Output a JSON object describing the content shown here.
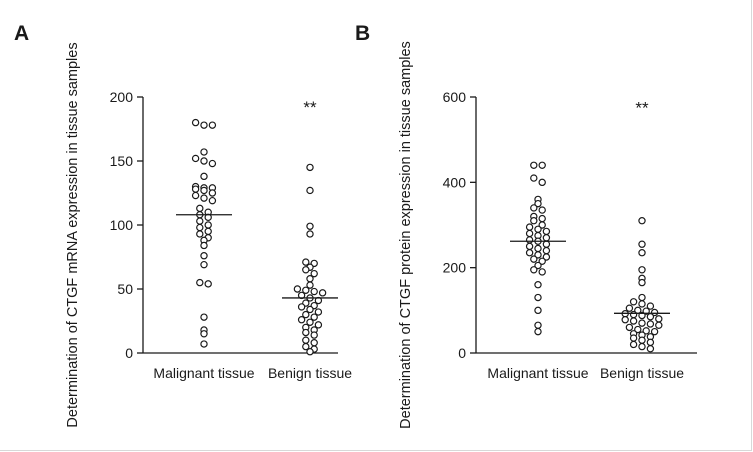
{
  "panels": [
    {
      "label": "A"
    },
    {
      "label": "B"
    }
  ],
  "chart_data": [
    {
      "type": "scatter",
      "subtype": "dot-plot",
      "title": "",
      "ylabel": "Determination of CTGF mRNA expression in tissue samples",
      "xlabel": "",
      "categories": [
        "Malignant tissue",
        "Benign tissue"
      ],
      "ylim": [
        0,
        200
      ],
      "yticks": [
        0,
        50,
        100,
        150,
        200
      ],
      "grid": false,
      "legend": "none",
      "annotations": [
        {
          "text": "**",
          "category": "Benign tissue",
          "y": 197
        }
      ],
      "series": [
        {
          "values": [
            180,
            178,
            178,
            157,
            152,
            150,
            148,
            138,
            130,
            129,
            129,
            128,
            127,
            125,
            123,
            121,
            119,
            113,
            110,
            108,
            106,
            103,
            100,
            98,
            95,
            93,
            90,
            88,
            84,
            76,
            69,
            55,
            54,
            28,
            18,
            15,
            7
          ],
          "mean": 108
        },
        {
          "values": [
            145,
            127,
            99,
            93,
            71,
            70,
            67,
            65,
            62,
            58,
            53,
            50,
            49,
            48,
            47,
            45,
            43,
            41,
            39,
            37,
            36,
            34,
            32,
            30,
            28,
            26,
            24,
            22,
            20,
            18,
            16,
            14,
            10,
            8,
            5,
            3,
            1
          ],
          "mean": 43
        }
      ]
    },
    {
      "type": "scatter",
      "subtype": "dot-plot",
      "title": "",
      "ylabel": "Determination of CTGF protein expression in tissue samples",
      "xlabel": "",
      "categories": [
        "Malignant tissue",
        "Benign tissue"
      ],
      "ylim": [
        0,
        600
      ],
      "yticks": [
        0,
        200,
        400,
        600
      ],
      "grid": false,
      "legend": "none",
      "annotations": [
        {
          "text": "**",
          "category": "Benign tissue",
          "y": 590
        }
      ],
      "series": [
        {
          "values": [
            440,
            440,
            410,
            400,
            360,
            350,
            340,
            335,
            320,
            315,
            310,
            300,
            295,
            290,
            285,
            280,
            275,
            270,
            265,
            262,
            255,
            250,
            245,
            240,
            235,
            230,
            225,
            220,
            215,
            205,
            195,
            190,
            160,
            130,
            100,
            65,
            50
          ],
          "mean": 262
        },
        {
          "values": [
            310,
            255,
            235,
            195,
            175,
            165,
            130,
            120,
            115,
            110,
            105,
            100,
            98,
            95,
            92,
            90,
            88,
            85,
            80,
            78,
            75,
            70,
            68,
            65,
            60,
            55,
            52,
            50,
            45,
            42,
            38,
            35,
            30,
            25,
            20,
            15,
            10
          ],
          "mean": 93
        }
      ]
    }
  ]
}
